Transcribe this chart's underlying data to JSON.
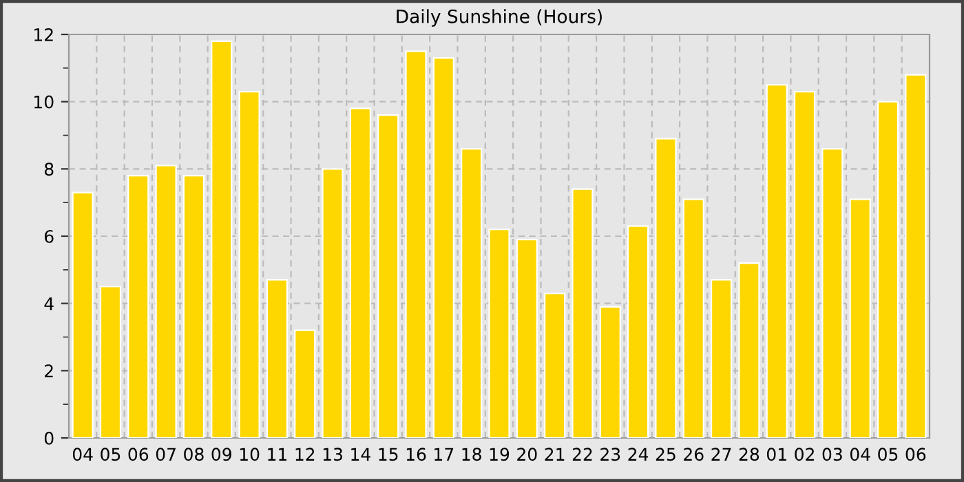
{
  "chart_data": {
    "type": "bar",
    "title": "Daily Sunshine (Hours)",
    "categories": [
      "04",
      "05",
      "06",
      "07",
      "08",
      "09",
      "10",
      "11",
      "12",
      "13",
      "14",
      "15",
      "16",
      "17",
      "18",
      "19",
      "20",
      "21",
      "22",
      "23",
      "24",
      "25",
      "26",
      "27",
      "28",
      "01",
      "02",
      "03",
      "04",
      "05",
      "06"
    ],
    "values": [
      7.3,
      4.5,
      7.8,
      8.1,
      7.8,
      11.8,
      10.3,
      4.7,
      3.2,
      8.0,
      9.8,
      9.6,
      11.5,
      11.3,
      8.6,
      6.2,
      5.9,
      4.3,
      7.4,
      3.9,
      6.3,
      8.9,
      7.1,
      4.7,
      5.2,
      10.5,
      10.3,
      8.6,
      7.1,
      10.0,
      10.8
    ],
    "color": "#ffd700",
    "ylim": [
      0,
      12
    ],
    "yticks": [
      0,
      {
        "value": 1,
        "label": null
      },
      2,
      {
        "value": 3,
        "label": null
      },
      4,
      {
        "value": 5,
        "label": null
      },
      6,
      {
        "value": 7,
        "label": null
      },
      8,
      {
        "value": 9,
        "label": null
      },
      10,
      {
        "value": 11,
        "label": null
      },
      12
    ],
    "grid": true
  }
}
